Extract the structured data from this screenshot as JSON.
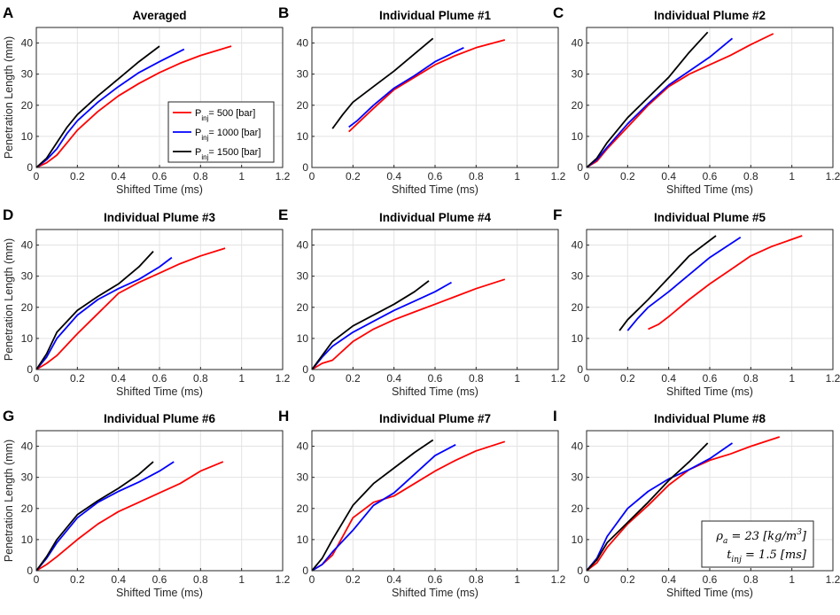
{
  "figure": {
    "xlabel": "Shifted Time (ms)",
    "ylabel": "Penetration Length (mm)",
    "legend": [
      {
        "prefix": "P",
        "sub": "inj",
        "value": "=   500 [bar]",
        "color": "#ff0000"
      },
      {
        "prefix": "P",
        "sub": "inj",
        "value": "=  1000 [bar]",
        "color": "#0000ff"
      },
      {
        "prefix": "P",
        "sub": "inj",
        "value": "=  1500 [bar]",
        "color": "#000000"
      }
    ],
    "annotation": {
      "line1": "ρa = 23 [kg/m3]",
      "rho": "ρ",
      "rho_sub": "a",
      "rho_value": " = 23 [kg/m",
      "rho_exp": "3",
      "rho_end": "]",
      "t": "t",
      "t_sub": "inj",
      "t_value": " = 1.5 [ms]"
    }
  },
  "chart_data": [
    {
      "letter": "A",
      "title": "Averaged",
      "type": "line",
      "xlim": [
        0,
        1.2
      ],
      "ylim": [
        0,
        45
      ],
      "xticks": [
        "0",
        "0.2",
        "0.4",
        "0.6",
        "0.8",
        "1",
        "1.2"
      ],
      "yticks": [
        "0",
        "10",
        "20",
        "30",
        "40"
      ],
      "series": [
        {
          "name": "500 bar",
          "color": "#ff0000",
          "x": [
            0,
            0.05,
            0.1,
            0.15,
            0.2,
            0.3,
            0.4,
            0.5,
            0.6,
            0.7,
            0.8,
            0.9,
            0.95
          ],
          "y": [
            0,
            1.5,
            4,
            8,
            12,
            18,
            23,
            27,
            30.5,
            33.5,
            36,
            38,
            39
          ]
        },
        {
          "name": "1000 bar",
          "color": "#0000ff",
          "x": [
            0,
            0.05,
            0.1,
            0.15,
            0.2,
            0.3,
            0.4,
            0.5,
            0.6,
            0.72
          ],
          "y": [
            0,
            2.5,
            6,
            11,
            15,
            21,
            26,
            30.5,
            34,
            38
          ]
        },
        {
          "name": "1500 bar",
          "color": "#000000",
          "x": [
            0,
            0.05,
            0.1,
            0.15,
            0.2,
            0.3,
            0.4,
            0.5,
            0.6
          ],
          "y": [
            0,
            3,
            8,
            13,
            17,
            23,
            28.5,
            34,
            39
          ]
        }
      ]
    },
    {
      "letter": "B",
      "title": "Individual Plume #1",
      "type": "line",
      "xlim": [
        0,
        1.2
      ],
      "ylim": [
        0,
        45
      ],
      "xticks": [
        "0",
        "0.2",
        "0.4",
        "0.6",
        "0.8",
        "1",
        "1.2"
      ],
      "yticks": [
        "0",
        "10",
        "20",
        "30",
        "40"
      ],
      "series": [
        {
          "name": "500 bar",
          "color": "#ff0000",
          "x": [
            0.18,
            0.22,
            0.3,
            0.4,
            0.5,
            0.6,
            0.7,
            0.8,
            0.94
          ],
          "y": [
            11.5,
            14,
            19,
            25,
            29,
            33,
            36,
            38.5,
            41
          ]
        },
        {
          "name": "1000 bar",
          "color": "#0000ff",
          "x": [
            0.18,
            0.22,
            0.3,
            0.4,
            0.5,
            0.6,
            0.74
          ],
          "y": [
            13,
            15,
            20,
            25.5,
            29.5,
            34,
            38.5
          ]
        },
        {
          "name": "1500 bar",
          "color": "#000000",
          "x": [
            0.1,
            0.15,
            0.2,
            0.3,
            0.4,
            0.5,
            0.59
          ],
          "y": [
            12.5,
            17,
            21,
            26,
            31,
            36.5,
            41.5
          ]
        }
      ]
    },
    {
      "letter": "C",
      "title": "Individual Plume #2",
      "type": "line",
      "xlim": [
        0,
        1.2
      ],
      "ylim": [
        0,
        45
      ],
      "xticks": [
        "0",
        "0.2",
        "0.4",
        "0.6",
        "0.8",
        "1",
        "1.2"
      ],
      "yticks": [
        "0",
        "10",
        "20",
        "30",
        "40"
      ],
      "series": [
        {
          "name": "500 bar",
          "color": "#ff0000",
          "x": [
            0,
            0.05,
            0.1,
            0.2,
            0.3,
            0.4,
            0.5,
            0.6,
            0.7,
            0.8,
            0.91
          ],
          "y": [
            0,
            2,
            6,
            13,
            20,
            26,
            30,
            33,
            36,
            39.5,
            43
          ]
        },
        {
          "name": "1000 bar",
          "color": "#0000ff",
          "x": [
            0,
            0.05,
            0.1,
            0.2,
            0.3,
            0.4,
            0.5,
            0.6,
            0.71
          ],
          "y": [
            0,
            2.5,
            6.5,
            14,
            20.5,
            26.5,
            31,
            35.5,
            41.5
          ]
        },
        {
          "name": "1500 bar",
          "color": "#000000",
          "x": [
            0,
            0.05,
            0.1,
            0.2,
            0.3,
            0.4,
            0.5,
            0.59
          ],
          "y": [
            0,
            3,
            8,
            16,
            22.5,
            29,
            37,
            43.5
          ]
        }
      ]
    },
    {
      "letter": "D",
      "title": "Individual Plume #3",
      "type": "line",
      "xlim": [
        0,
        1.2
      ],
      "ylim": [
        0,
        45
      ],
      "xticks": [
        "0",
        "0.2",
        "0.4",
        "0.6",
        "0.8",
        "1",
        "1.2"
      ],
      "yticks": [
        "0",
        "10",
        "20",
        "30",
        "40"
      ],
      "series": [
        {
          "name": "500 bar",
          "color": "#ff0000",
          "x": [
            0,
            0.05,
            0.1,
            0.2,
            0.3,
            0.4,
            0.5,
            0.6,
            0.7,
            0.8,
            0.92
          ],
          "y": [
            0,
            2,
            4.5,
            11.5,
            18,
            24.5,
            28,
            31,
            34,
            36.5,
            39
          ]
        },
        {
          "name": "1000 bar",
          "color": "#0000ff",
          "x": [
            0,
            0.05,
            0.1,
            0.2,
            0.3,
            0.4,
            0.5,
            0.6,
            0.66
          ],
          "y": [
            0,
            4,
            10,
            17.5,
            22.5,
            26,
            29,
            33,
            36
          ]
        },
        {
          "name": "1500 bar",
          "color": "#000000",
          "x": [
            0,
            0.05,
            0.1,
            0.2,
            0.3,
            0.4,
            0.5,
            0.57
          ],
          "y": [
            0,
            5,
            12,
            19,
            23.5,
            27.5,
            33,
            38
          ]
        }
      ]
    },
    {
      "letter": "E",
      "title": "Individual Plume #4",
      "type": "line",
      "xlim": [
        0,
        1.2
      ],
      "ylim": [
        0,
        45
      ],
      "xticks": [
        "0",
        "0.2",
        "0.4",
        "0.6",
        "0.8",
        "1",
        "1.2"
      ],
      "yticks": [
        "0",
        "10",
        "20",
        "30",
        "40"
      ],
      "series": [
        {
          "name": "500 bar",
          "color": "#ff0000",
          "x": [
            0,
            0.05,
            0.1,
            0.2,
            0.3,
            0.4,
            0.5,
            0.6,
            0.7,
            0.8,
            0.94
          ],
          "y": [
            0,
            2,
            3,
            9,
            13,
            16,
            18.5,
            21,
            23.5,
            26,
            29
          ]
        },
        {
          "name": "1000 bar",
          "color": "#0000ff",
          "x": [
            0,
            0.05,
            0.1,
            0.2,
            0.3,
            0.4,
            0.5,
            0.6,
            0.68
          ],
          "y": [
            0,
            4,
            7.5,
            12,
            15.5,
            19,
            22,
            25,
            28
          ]
        },
        {
          "name": "1500 bar",
          "color": "#000000",
          "x": [
            0,
            0.05,
            0.1,
            0.2,
            0.3,
            0.4,
            0.5,
            0.57
          ],
          "y": [
            0,
            4.5,
            9,
            14,
            17.5,
            21,
            25,
            28.5
          ]
        }
      ]
    },
    {
      "letter": "F",
      "title": "Individual Plume #5",
      "type": "line",
      "xlim": [
        0,
        1.2
      ],
      "ylim": [
        0,
        45
      ],
      "xticks": [
        "0",
        "0.2",
        "0.4",
        "0.6",
        "0.8",
        "1",
        "1.2"
      ],
      "yticks": [
        "0",
        "10",
        "20",
        "30",
        "40"
      ],
      "series": [
        {
          "name": "500 bar",
          "color": "#ff0000",
          "x": [
            0.3,
            0.35,
            0.4,
            0.5,
            0.6,
            0.7,
            0.8,
            0.9,
            1.05
          ],
          "y": [
            13,
            14.5,
            17,
            22.5,
            27.5,
            32,
            36.5,
            39.5,
            43
          ]
        },
        {
          "name": "1000 bar",
          "color": "#0000ff",
          "x": [
            0.2,
            0.25,
            0.3,
            0.4,
            0.5,
            0.6,
            0.75
          ],
          "y": [
            12.5,
            16.5,
            20,
            25,
            30.5,
            36,
            42.5
          ]
        },
        {
          "name": "1500 bar",
          "color": "#000000",
          "x": [
            0.16,
            0.2,
            0.3,
            0.4,
            0.5,
            0.63
          ],
          "y": [
            12.5,
            16,
            22.5,
            29.5,
            36.5,
            43
          ]
        }
      ]
    },
    {
      "letter": "G",
      "title": "Individual Plume #6",
      "type": "line",
      "xlim": [
        0,
        1.2
      ],
      "ylim": [
        0,
        45
      ],
      "xticks": [
        "0",
        "0.2",
        "0.4",
        "0.6",
        "0.8",
        "1",
        "1.2"
      ],
      "yticks": [
        "0",
        "10",
        "20",
        "30",
        "40"
      ],
      "series": [
        {
          "name": "500 bar",
          "color": "#ff0000",
          "x": [
            0,
            0.05,
            0.1,
            0.2,
            0.3,
            0.4,
            0.5,
            0.6,
            0.7,
            0.8,
            0.91
          ],
          "y": [
            0,
            2,
            4.5,
            10,
            15,
            19,
            22,
            25,
            28,
            32,
            35
          ]
        },
        {
          "name": "1000 bar",
          "color": "#0000ff",
          "x": [
            0,
            0.05,
            0.1,
            0.2,
            0.3,
            0.4,
            0.5,
            0.6,
            0.67
          ],
          "y": [
            0,
            4,
            9,
            17,
            22,
            25.5,
            28.5,
            32,
            35
          ]
        },
        {
          "name": "1500 bar",
          "color": "#000000",
          "x": [
            0,
            0.05,
            0.1,
            0.2,
            0.3,
            0.4,
            0.5,
            0.57
          ],
          "y": [
            0,
            4.5,
            10,
            18,
            22.5,
            26.5,
            31,
            35
          ]
        }
      ]
    },
    {
      "letter": "H",
      "title": "Individual Plume #7",
      "type": "line",
      "xlim": [
        0,
        1.2
      ],
      "ylim": [
        0,
        45
      ],
      "xticks": [
        "0",
        "0.2",
        "0.4",
        "0.6",
        "0.8",
        "1",
        "1.2"
      ],
      "yticks": [
        "0",
        "10",
        "20",
        "30",
        "40"
      ],
      "series": [
        {
          "name": "500 bar",
          "color": "#ff0000",
          "x": [
            0,
            0.05,
            0.1,
            0.15,
            0.2,
            0.3,
            0.4,
            0.5,
            0.6,
            0.7,
            0.8,
            0.94
          ],
          "y": [
            0,
            2,
            5,
            11,
            17,
            22,
            24,
            28,
            32,
            35.5,
            38.5,
            41.5
          ]
        },
        {
          "name": "1000 bar",
          "color": "#0000ff",
          "x": [
            0,
            0.05,
            0.1,
            0.2,
            0.3,
            0.4,
            0.5,
            0.6,
            0.7
          ],
          "y": [
            0,
            2,
            6,
            13,
            21,
            25,
            31,
            37,
            40.5
          ]
        },
        {
          "name": "1500 bar",
          "color": "#000000",
          "x": [
            0,
            0.05,
            0.1,
            0.2,
            0.3,
            0.4,
            0.5,
            0.59
          ],
          "y": [
            0,
            4,
            10,
            21,
            28,
            33,
            38,
            42
          ]
        }
      ]
    },
    {
      "letter": "I",
      "title": "Individual Plume #8",
      "type": "line",
      "xlim": [
        0,
        1.2
      ],
      "ylim": [
        0,
        45
      ],
      "xticks": [
        "0",
        "0.2",
        "0.4",
        "0.6",
        "0.8",
        "1",
        "1.2"
      ],
      "yticks": [
        "0",
        "10",
        "20",
        "30",
        "40"
      ],
      "series": [
        {
          "name": "500 bar",
          "color": "#ff0000",
          "x": [
            0,
            0.05,
            0.1,
            0.2,
            0.3,
            0.4,
            0.5,
            0.6,
            0.7,
            0.8,
            0.94
          ],
          "y": [
            0,
            2.5,
            7.5,
            15,
            21,
            27.5,
            32.5,
            35.5,
            37.5,
            40,
            43
          ]
        },
        {
          "name": "1000 bar",
          "color": "#0000ff",
          "x": [
            0,
            0.05,
            0.1,
            0.2,
            0.3,
            0.4,
            0.5,
            0.6,
            0.71
          ],
          "y": [
            0,
            4,
            11,
            20,
            25.5,
            29.5,
            32.5,
            36,
            41
          ]
        },
        {
          "name": "1500 bar",
          "color": "#000000",
          "x": [
            0,
            0.05,
            0.1,
            0.2,
            0.3,
            0.4,
            0.5,
            0.59
          ],
          "y": [
            0,
            3.5,
            9,
            15.5,
            22,
            29,
            35,
            41
          ]
        }
      ]
    }
  ]
}
